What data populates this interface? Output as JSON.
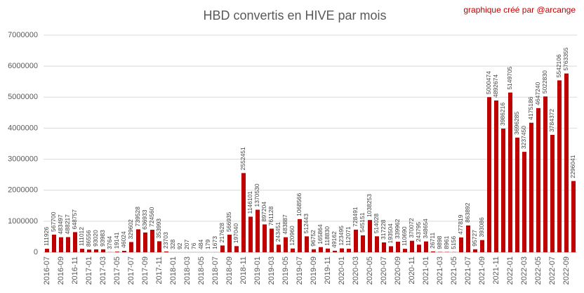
{
  "chart_data": {
    "type": "bar",
    "title": "HBD convertis en HIVE par mois",
    "annotation": "graphique créé par @arcange",
    "categories": [
      "2016-07",
      null,
      "2016-09",
      null,
      "2016-11",
      null,
      "2017-01",
      null,
      "2017-03",
      null,
      "2017-05",
      null,
      "2017-07",
      null,
      "2017-09",
      null,
      "2017-11",
      null,
      "2018-01",
      null,
      "2018-03",
      null,
      "2018-05",
      null,
      "2018-07",
      null,
      "2018-09",
      null,
      "2018-11",
      null,
      "2019-01",
      null,
      "2019-03",
      null,
      "2019-05",
      null,
      "2019-07",
      null,
      "2019-09",
      null,
      "2019-11",
      null,
      "2020-01",
      null,
      "2020-03",
      null,
      "2020-05",
      null,
      "2020-07",
      null,
      "2020-09",
      null,
      "2020-11",
      null,
      "2021-01",
      null,
      "2021-03",
      null,
      "2021-05",
      null,
      "2021-07",
      null,
      "2021-09",
      null,
      "2021-11",
      null,
      "2022-01",
      null,
      "2022-03",
      null,
      "2022-05",
      null,
      "2022-07",
      null,
      "2022-09",
      null
    ],
    "values": [
      111926,
      567700,
      483497,
      488217,
      648757,
      111012,
      86556,
      93020,
      93983,
      3764,
      19141,
      46024,
      329602,
      739528,
      636933,
      724560,
      353993,
      23703,
      328,
      92,
      207,
      76,
      484,
      179,
      1673,
      217628,
      566935,
      197040,
      2552451,
      1146101,
      1370530,
      897204,
      761128,
      243451,
      483887,
      120960,
      1068566,
      512443,
      96752,
      165864,
      118830,
      49162,
      123495,
      112071,
      728491,
      545151,
      1038253,
      514028,
      317228,
      193504,
      339962,
      110690,
      370072,
      243795,
      348654,
      26711,
      9898,
      8961,
      5156,
      477819,
      863892,
      95727,
      393086,
      5000474,
      4892674,
      3986216,
      5149705,
      3696285,
      3237450,
      4175186,
      4647240,
      5022830,
      3784372,
      5542106,
      5763355,
      2296041
    ],
    "color": "#c00000",
    "ylim": [
      0,
      7000000
    ],
    "yticks": [
      0,
      1000000,
      2000000,
      3000000,
      4000000,
      5000000,
      6000000,
      7000000
    ],
    "grid": true
  }
}
